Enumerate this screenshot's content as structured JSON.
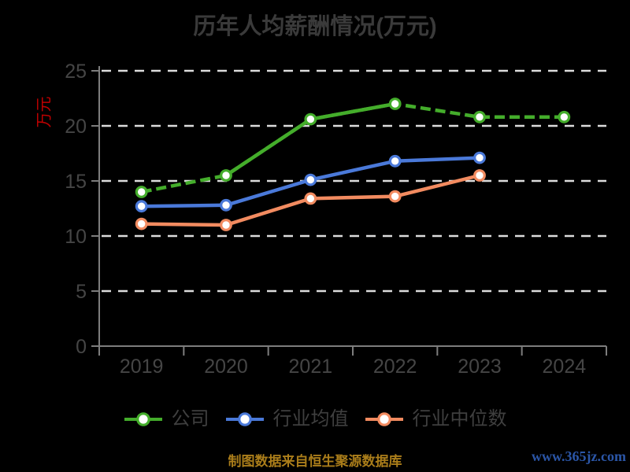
{
  "title": "历年人均薪酬情况(万元)",
  "y_axis": {
    "label": "万元"
  },
  "footer": {
    "source_note": "制图数据来自恒生聚源数据库",
    "watermark": "www.365jz.com"
  },
  "palette": {
    "background": "#000000",
    "title_text": "#3a3a3a",
    "axis_line": "#7d7d7d",
    "tick_text": "#454545",
    "grid_line": "#dcdcdc",
    "legend_text": "#3f3f3f",
    "y_unit_label": "#c00000",
    "source_note": "#aa7d1a",
    "watermark": "#2b56a7"
  },
  "chart_data": {
    "type": "line",
    "title": "历年人均薪酬情况(万元)",
    "ylabel": "万元",
    "xlabel": "",
    "categories": [
      "2019",
      "2020",
      "2021",
      "2022",
      "2023",
      "2024"
    ],
    "series": [
      {
        "name": "公司",
        "color": "#44ad2b",
        "values": [
          14.0,
          15.5,
          20.6,
          22.0,
          20.8,
          20.8
        ],
        "line_style": "dashed",
        "solid_segment": [
          1,
          3
        ],
        "marker": "circle-white-fill"
      },
      {
        "name": "行业均值",
        "color": "#4a79d9",
        "values": [
          12.7,
          12.8,
          15.1,
          16.8,
          17.1,
          null
        ],
        "line_style": "solid",
        "marker": "circle-white-fill"
      },
      {
        "name": "行业中位数",
        "color": "#f28b60",
        "values": [
          11.1,
          11.0,
          13.4,
          13.6,
          15.5,
          null
        ],
        "line_style": "solid",
        "marker": "circle-white-fill"
      }
    ],
    "ylim": [
      0,
      25
    ],
    "ytick_step": 5,
    "grid": "horizontal-dashed-white",
    "legend_position": "bottom"
  }
}
